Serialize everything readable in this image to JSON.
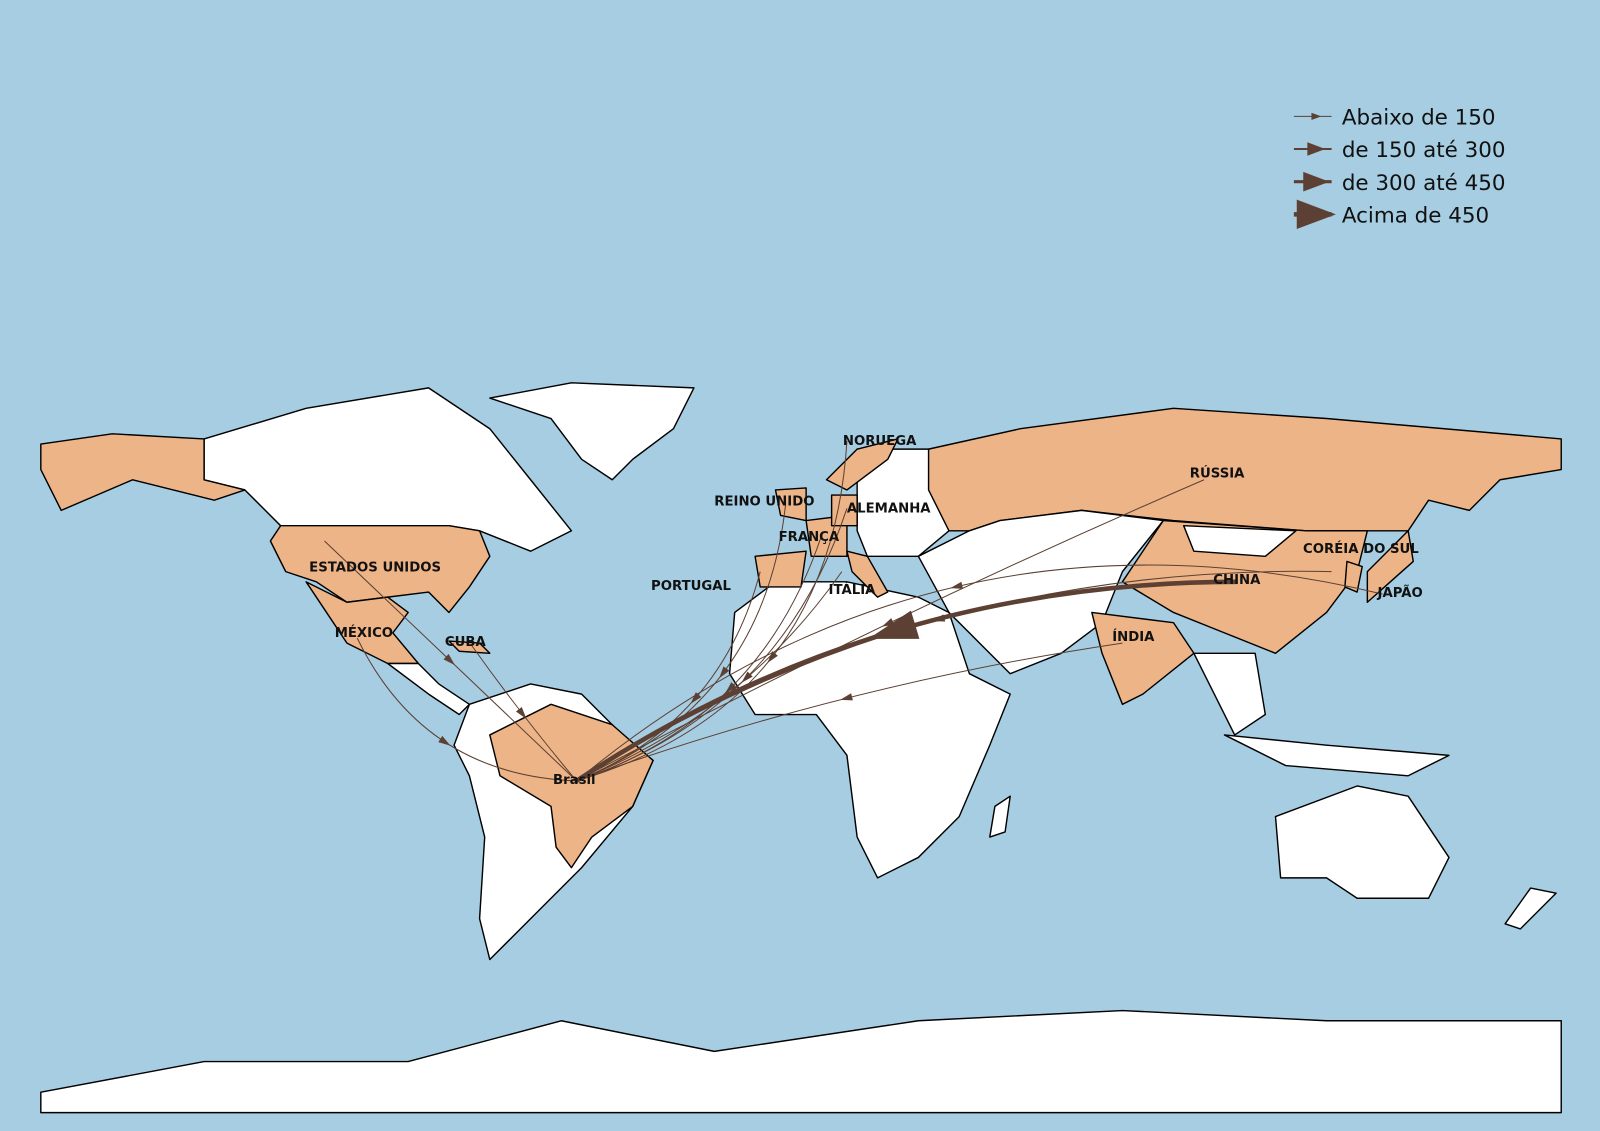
{
  "colors": {
    "ocean": "#a6cde2",
    "highlight": "#edb487",
    "land": "#ffffff",
    "flow": "#5c4033"
  },
  "legend": {
    "items": [
      {
        "label": "Abaixo de 150"
      },
      {
        "label": "de 150 até 300"
      },
      {
        "label": "de 300 até 450"
      },
      {
        "label": "Acima de 450"
      }
    ]
  },
  "origin": {
    "label": "Brasil"
  },
  "countries": [
    {
      "label": "NORUEGA"
    },
    {
      "label": "RÚSSIA"
    },
    {
      "label": "REINO UNIDO"
    },
    {
      "label": "ALEMANHA"
    },
    {
      "label": "FRANÇA"
    },
    {
      "label": "ESTADOS UNIDOS"
    },
    {
      "label": "PORTUGAL"
    },
    {
      "label": "ITÁLIA"
    },
    {
      "label": "CHINA"
    },
    {
      "label": "CORÉIA DO SUL"
    },
    {
      "label": "JAPÃO"
    },
    {
      "label": "MÉXICO"
    },
    {
      "label": "CUBA"
    },
    {
      "label": "ÍNDIA"
    }
  ],
  "flows": [
    {
      "country": "NORUEGA",
      "level": 0
    },
    {
      "country": "RÚSSIA",
      "level": 0
    },
    {
      "country": "REINO UNIDO",
      "level": 0
    },
    {
      "country": "ALEMANHA",
      "level": 0
    },
    {
      "country": "FRANÇA",
      "level": 0
    },
    {
      "country": "ESTADOS UNIDOS",
      "level": 0
    },
    {
      "country": "PORTUGAL",
      "level": 0
    },
    {
      "country": "ITÁLIA",
      "level": 0
    },
    {
      "country": "CHINA",
      "level": 3
    },
    {
      "country": "CORÉIA DO SUL",
      "level": 0
    },
    {
      "country": "JAPÃO",
      "level": 0
    },
    {
      "country": "MÉXICO",
      "level": 0
    },
    {
      "country": "CUBA",
      "level": 0
    },
    {
      "country": "ÍNDIA",
      "level": 0
    }
  ]
}
